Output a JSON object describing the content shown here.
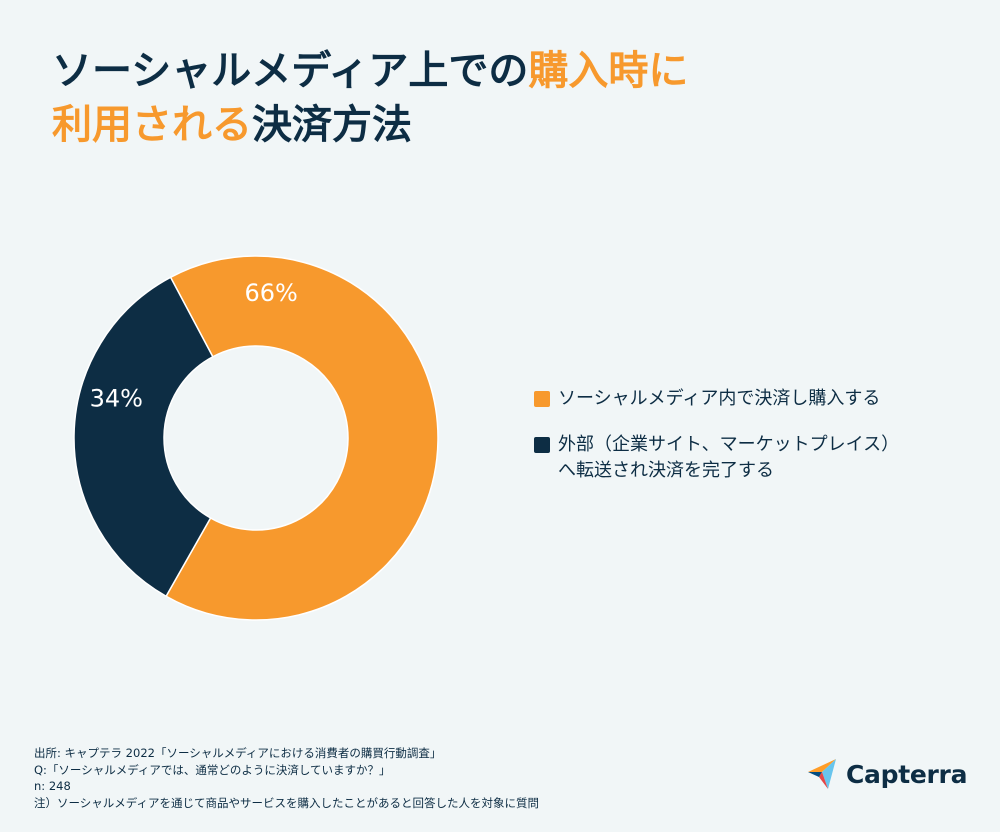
{
  "title": {
    "line1_normal": "ソーシャルメディア上での",
    "line1_highlight": "購入時に",
    "line2_highlight": "利用される",
    "line2_normal": "決済方法"
  },
  "chart_data": {
    "type": "pie",
    "variant": "donut",
    "categories": [
      "ソーシャルメディア内で決済し購入する",
      "外部（企業サイト、マーケットプレイス）\nへ転送され決済を完了する"
    ],
    "values": [
      66,
      34
    ],
    "value_labels": [
      "66%",
      "34%"
    ],
    "colors": [
      "#f7992d",
      "#0d2d44"
    ],
    "legend_position": "right"
  },
  "footer": {
    "source": "出所: キャプテラ 2022「ソーシャルメディアにおける消費者の購買行動調査」",
    "question": "Q:「ソーシャルメディアでは、通常どのように決済していますか？」",
    "n": "n: 248",
    "note": "注）ソーシャルメディアを通じて商品やサービスを購入したことがあると回答した人を対象に質問"
  },
  "logo": {
    "text": "Capterra",
    "icon": "capterra-arrow-icon"
  }
}
